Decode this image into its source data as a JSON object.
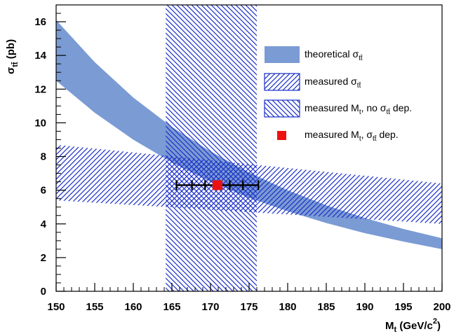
{
  "chart_data": {
    "type": "area",
    "xlim": [
      150,
      200
    ],
    "ylim": [
      0,
      17
    ],
    "x_ticks": [
      150,
      155,
      160,
      165,
      170,
      175,
      180,
      185,
      190,
      195,
      200
    ],
    "y_ticks": [
      0,
      2,
      4,
      6,
      8,
      10,
      12,
      14,
      16
    ],
    "xlabel": {
      "main": "M",
      "sub": "t",
      "rest": " (GeV/c",
      "sup": "2",
      "end": ")"
    },
    "ylabel": {
      "main": "σ",
      "sub": "tt̄",
      "rest": " (pb)"
    },
    "grid": false,
    "legend_position": "top-right",
    "series": [
      {
        "key": "theory",
        "kind": "band",
        "color": "#7b9bd4",
        "x": [
          150,
          155,
          160,
          165,
          170,
          175,
          180,
          185,
          190,
          195,
          200
        ],
        "upper": [
          16.1,
          13.6,
          11.5,
          9.75,
          8.3,
          7.05,
          6.0,
          5.1,
          4.35,
          3.7,
          3.15
        ],
        "lower": [
          12.5,
          10.6,
          9.0,
          7.65,
          6.5,
          5.55,
          4.75,
          4.05,
          3.45,
          2.95,
          2.5
        ]
      },
      {
        "key": "measured_xsec",
        "kind": "hatched-band",
        "color": "#1a2fc8",
        "x": [
          150,
          200
        ],
        "upper": [
          8.7,
          6.4
        ],
        "lower": [
          5.4,
          4.0
        ]
      },
      {
        "key": "measured_mass",
        "kind": "vertical-band",
        "color": "#1a2fc8",
        "xmin": 164.2,
        "xmax": 176.0,
        "ymin": 0,
        "ymax": 17
      },
      {
        "key": "measured_point",
        "kind": "point",
        "color": "#ee1111",
        "x": 170.9,
        "y": 6.3,
        "stat_err": 4.3,
        "err_caps": [
          1.6,
          3.3,
          5.3
        ]
      }
    ],
    "legend": [
      {
        "key": "theory",
        "pre": "theoretical σ",
        "sub": "tt̄",
        "post": ""
      },
      {
        "key": "measured_xsec",
        "pre": "measured σ",
        "sub": "tt̄",
        "post": ""
      },
      {
        "key": "measured_mass",
        "pre": "measured M",
        "sub": "t",
        "post": ", no σ",
        "sub2": "tt̄",
        "post2": " dep."
      },
      {
        "key": "measured_point",
        "pre": "measured M",
        "sub": "t",
        "post": ", σ",
        "sub2": "tt̄",
        "post2": " dep."
      }
    ]
  }
}
